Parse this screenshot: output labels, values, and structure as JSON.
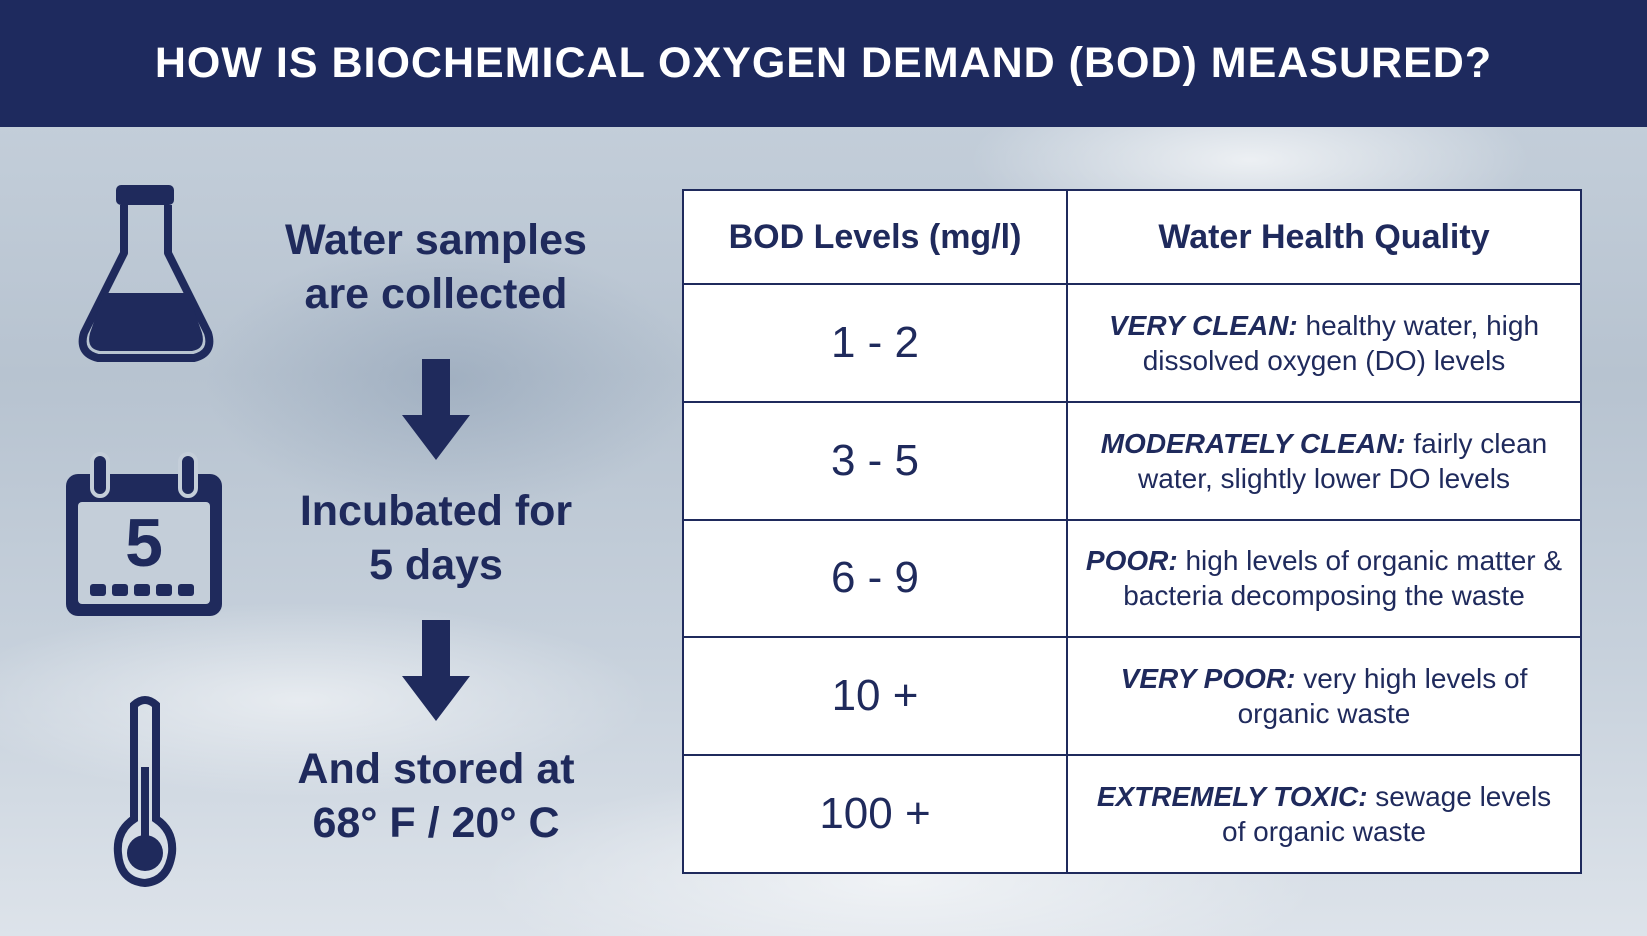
{
  "header": {
    "title": "HOW IS BIOCHEMICAL OXYGEN DEMAND (BOD) MEASURED?"
  },
  "steps": [
    {
      "lines": [
        "Water samples",
        "are collected"
      ]
    },
    {
      "lines": [
        "Incubated for",
        "5 days"
      ]
    },
    {
      "lines": [
        "And stored at",
        "68° F / 20° C"
      ]
    }
  ],
  "calendar_icon": {
    "day": "5"
  },
  "table": {
    "headers": [
      "BOD Levels (mg/l)",
      "Water Health Quality"
    ],
    "rows": [
      {
        "level": "1 - 2",
        "label": "VERY CLEAN:",
        "description": "healthy water, high dissolved oxygen (DO) levels"
      },
      {
        "level": "3 - 5",
        "label": "MODERATELY CLEAN:",
        "description": "fairly clean water, slightly lower DO levels"
      },
      {
        "level": "6 - 9",
        "label": "POOR:",
        "description": "high levels of organic matter & bacteria decomposing the waste"
      },
      {
        "level": "10 +",
        "label": "VERY POOR:",
        "description": "very high levels of organic waste"
      },
      {
        "level": "100 +",
        "label": "EXTREMELY TOXIC:",
        "description": "sewage levels of organic waste"
      }
    ]
  }
}
